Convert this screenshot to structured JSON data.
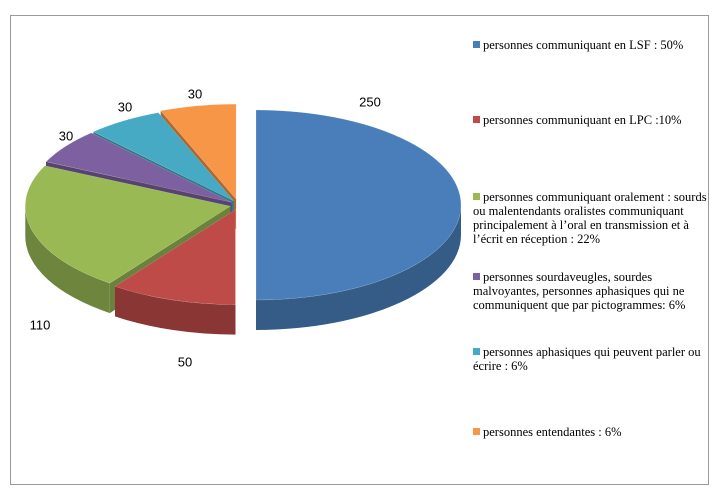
{
  "chart_data": {
    "type": "pie3d",
    "categories": [
      "personnes communiquant en LSF : 50%",
      "personnes communiquant en LPC :10%",
      "personnes communiquant oralement : sourds ou malentendants oralistes communiquant principalement à l’oral en transmission et à l’écrit en réception : 22%",
      "personnes sourdaveugles, sourdes malvoyantes, personnes aphasiques qui ne communiquent que par pictogrammes: 6%",
      "personnes aphasiques qui peuvent parler ou écrire : 6%",
      "personnes entendantes : 6%"
    ],
    "values": [
      250,
      50,
      110,
      30,
      30,
      30
    ],
    "colors": [
      "#4a7ebb",
      "#be4b48",
      "#98b954",
      "#7d60a0",
      "#46aac5",
      "#f79646"
    ],
    "legend": "right"
  }
}
